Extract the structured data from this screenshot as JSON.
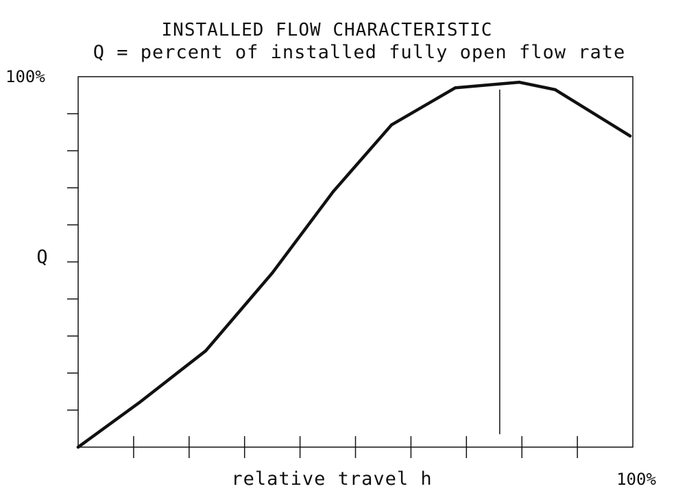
{
  "chart_data": {
    "type": "line",
    "title": "INSTALLED FLOW CHARACTERISTIC",
    "subtitle": "Q = percent of installed fully open flow rate",
    "xlabel": "relative travel h",
    "ylabel": "Q",
    "y_max_label": "100%",
    "x_max_label": "100%",
    "xlim": [
      0,
      100
    ],
    "ylim": [
      0,
      100
    ],
    "x_ticks": [
      10,
      20,
      30,
      40,
      50,
      60,
      70,
      80,
      90
    ],
    "y_ticks": [
      10,
      20,
      30,
      40,
      50,
      60,
      70,
      80,
      90
    ],
    "grid": false,
    "series": [
      {
        "x": [
          0,
          11,
          23,
          35,
          46,
          56.5,
          68,
          79.5,
          86,
          99.5
        ],
        "y": [
          0,
          12,
          26,
          47,
          69,
          87,
          97,
          98.5,
          96.5,
          84
        ],
        "color": "#111111"
      }
    ],
    "annotations": [
      {
        "type": "vertical-line",
        "x": 76,
        "y_from": 3.5,
        "y_to": 96.5
      }
    ]
  }
}
